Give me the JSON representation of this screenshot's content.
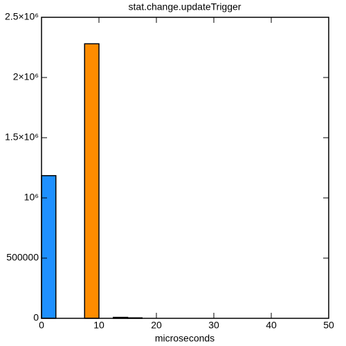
{
  "chart_data": {
    "type": "histogram",
    "title": "stat.change.updateTrigger",
    "x_label": "microseconds",
    "bins": [
      0,
      2.5,
      5,
      7.5,
      10,
      12.5,
      15,
      17.5
    ],
    "values": [
      1185000,
      0,
      0,
      2280000,
      0,
      8000,
      4000
    ],
    "colors": [
      "#1e90ff",
      "#1e90ff",
      "#1e90ff",
      "#ff8c00",
      "#1e90ff",
      "#444444",
      "#444444"
    ],
    "xlim": [
      0,
      50
    ],
    "xticks": [
      0,
      10,
      20,
      30,
      40,
      50
    ],
    "ylim": [
      0,
      2500000
    ],
    "yticks": [
      0,
      500000,
      {
        "value": 1000000,
        "label": "10⁶"
      },
      {
        "value": 1500000,
        "label": "1.5×10⁶"
      },
      {
        "value": 2000000,
        "label": "2×10⁶"
      },
      {
        "value": 2500000,
        "label": "2.5×10⁶"
      }
    ]
  }
}
